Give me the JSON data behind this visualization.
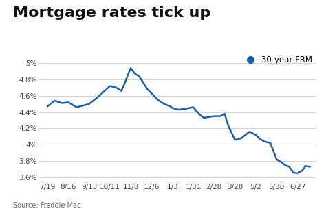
{
  "title": "Mortgage rates tick up",
  "source": "Source: Freddie Mac",
  "legend_label": "30-year FRM",
  "line_color": "#1a5fa8",
  "marker_color": "#1a5fa8",
  "background_color": "#ffffff",
  "grid_color": "#cccccc",
  "x_labels": [
    "7/19",
    "8/16",
    "9/13",
    "10/11",
    "11/8",
    "12/6",
    "1/3",
    "1/31",
    "2/28",
    "3/28",
    "5/2",
    "5/30",
    "6/27"
  ],
  "ylim": [
    3.55,
    5.05
  ],
  "yticks": [
    3.6,
    3.8,
    4.0,
    4.2,
    4.4,
    4.6,
    4.8,
    5.0
  ],
  "title_fontsize": 16,
  "label_fontsize": 8.5,
  "tick_fontsize": 7.5,
  "source_fontsize": 7,
  "dates_approx": [
    0.0,
    0.35,
    0.7,
    1.0,
    1.4,
    2.0,
    2.4,
    2.7,
    3.0,
    3.3,
    3.55,
    3.75,
    3.88,
    4.0,
    4.2,
    4.4,
    4.6,
    4.8,
    5.0,
    5.3,
    5.6,
    5.9,
    6.0,
    6.3,
    6.6,
    7.0,
    7.3,
    7.5,
    8.0,
    8.3,
    8.5,
    8.7,
    9.0,
    9.3,
    9.5,
    9.7,
    10.0,
    10.2,
    10.4,
    10.7,
    11.0,
    11.2,
    11.4,
    11.6,
    11.8,
    12.0,
    12.2,
    12.4,
    12.6
  ],
  "rates_approx": [
    4.47,
    4.54,
    4.51,
    4.52,
    4.46,
    4.5,
    4.58,
    4.65,
    4.72,
    4.7,
    4.66,
    4.78,
    4.87,
    4.94,
    4.87,
    4.84,
    4.76,
    4.68,
    4.63,
    4.55,
    4.5,
    4.47,
    4.45,
    4.43,
    4.44,
    4.46,
    4.37,
    4.33,
    4.35,
    4.35,
    4.38,
    4.22,
    4.06,
    4.08,
    4.12,
    4.16,
    4.12,
    4.07,
    4.04,
    4.02,
    3.82,
    3.79,
    3.75,
    3.73,
    3.66,
    3.65,
    3.68,
    3.74,
    3.73
  ]
}
